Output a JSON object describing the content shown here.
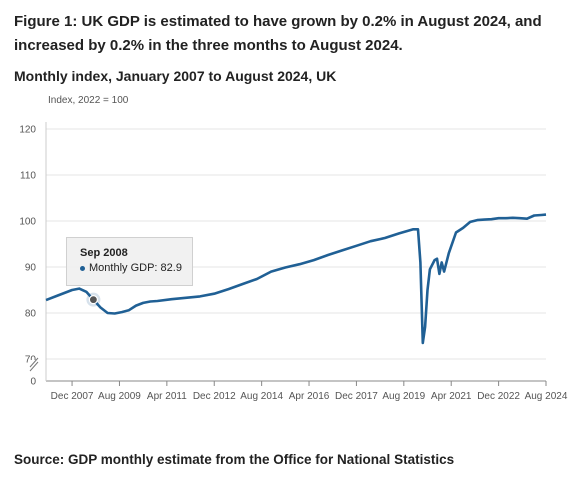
{
  "title": "Figure 1: UK GDP is estimated to have grown by 0.2% in August 2024, and increased by 0.2% in the three months to August 2024.",
  "subtitle": "Monthly index, January 2007 to August 2024, UK",
  "source": "Source: GDP monthly estimate from the Office for National Statistics",
  "tooltip": {
    "date": "Sep 2008",
    "series_label": "Monthly GDP:",
    "value": "82.9"
  },
  "colors": {
    "series": "#206095",
    "grid": "#e5e5e5",
    "axis": "#bbbbbb"
  },
  "chart_data": {
    "type": "line",
    "title": "Figure 1: UK GDP is estimated to have grown by 0.2% in August 2024, and increased by 0.2% in the three months to August 2024.",
    "subtitle": "Monthly index, January 2007 to August 2024, UK",
    "ylabel": "Index, 2022 = 100",
    "xlabel": "",
    "ylim": [
      0,
      120
    ],
    "y_axis_break": true,
    "yticks": [
      0,
      70,
      80,
      90,
      100,
      110,
      120
    ],
    "xticks": [
      "Dec 2007",
      "Aug 2009",
      "Apr 2011",
      "Dec 2012",
      "Aug 2014",
      "Apr 2016",
      "Dec 2017",
      "Aug 2019",
      "Apr 2021",
      "Dec 2022",
      "Aug 2024"
    ],
    "grid": true,
    "legend": "none",
    "series": [
      {
        "name": "Monthly GDP",
        "x": [
          "2007-01",
          "2007-06",
          "2007-12",
          "2008-03",
          "2008-06",
          "2008-09",
          "2008-12",
          "2009-03",
          "2009-06",
          "2009-09",
          "2009-12",
          "2010-03",
          "2010-06",
          "2010-09",
          "2010-12",
          "2011-06",
          "2011-12",
          "2012-06",
          "2012-12",
          "2013-06",
          "2013-12",
          "2014-06",
          "2014-12",
          "2015-06",
          "2015-12",
          "2016-06",
          "2016-12",
          "2017-06",
          "2017-12",
          "2018-06",
          "2018-12",
          "2019-06",
          "2019-12",
          "2020-02",
          "2020-03",
          "2020-04",
          "2020-05",
          "2020-06",
          "2020-07",
          "2020-09",
          "2020-10",
          "2020-11",
          "2020-12",
          "2021-01",
          "2021-03",
          "2021-06",
          "2021-09",
          "2021-12",
          "2022-03",
          "2022-06",
          "2022-09",
          "2022-12",
          "2023-03",
          "2023-06",
          "2023-09",
          "2023-12",
          "2024-03",
          "2024-06",
          "2024-08"
        ],
        "values": [
          82.8,
          83.8,
          85.0,
          85.3,
          84.6,
          82.9,
          81.2,
          80.0,
          79.9,
          80.2,
          80.6,
          81.6,
          82.2,
          82.5,
          82.6,
          83.0,
          83.3,
          83.6,
          84.2,
          85.2,
          86.3,
          87.4,
          89.0,
          89.9,
          90.6,
          91.5,
          92.6,
          93.6,
          94.6,
          95.6,
          96.3,
          97.3,
          98.2,
          98.2,
          91.0,
          73.5,
          77.0,
          85.0,
          89.5,
          91.5,
          91.8,
          88.5,
          91.0,
          89.0,
          93.0,
          97.5,
          98.5,
          99.8,
          100.2,
          100.3,
          100.4,
          100.6,
          100.6,
          100.7,
          100.6,
          100.5,
          101.2,
          101.3,
          101.4
        ]
      }
    ]
  }
}
